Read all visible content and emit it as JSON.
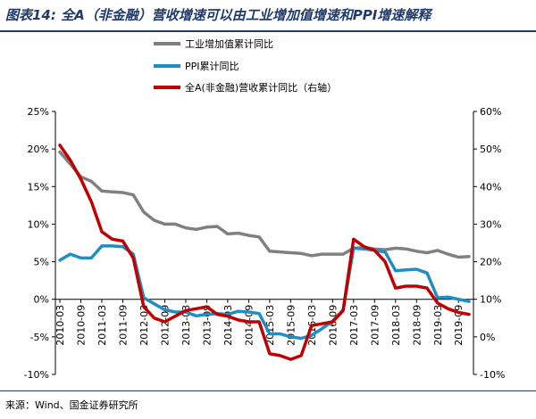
{
  "header": {
    "title": "图表14:  全A（非金融）营收增速可以由工业增加值增速和PPI增速解释"
  },
  "footer": {
    "source": "来源：Wind、国金证券研究所"
  },
  "chart_data": {
    "type": "line",
    "categories": [
      "2010-03",
      "2010-06",
      "2010-09",
      "2010-12",
      "2011-03",
      "2011-06",
      "2011-09",
      "2011-12",
      "2012-03",
      "2012-06",
      "2012-09",
      "2012-12",
      "2013-03",
      "2013-06",
      "2013-09",
      "2013-12",
      "2014-03",
      "2014-06",
      "2014-09",
      "2014-12",
      "2015-03",
      "2015-06",
      "2015-09",
      "2015-12",
      "2016-03",
      "2016-06",
      "2016-09",
      "2016-12",
      "2017-03",
      "2017-06",
      "2017-09",
      "2017-12",
      "2018-03",
      "2018-06",
      "2018-09",
      "2018-12",
      "2019-03",
      "2019-06",
      "2019-09",
      "2019-12"
    ],
    "x_tick_labels": [
      "2010-03",
      "2010-09",
      "2011-03",
      "2011-09",
      "2012-03",
      "2012-09",
      "2013-03",
      "2013-09",
      "2014-03",
      "2014-09",
      "2015-03",
      "2015-09",
      "2016-03",
      "2016-09",
      "2017-03",
      "2017-09",
      "2018-03",
      "2018-09",
      "2019-03",
      "2019-09"
    ],
    "left_axis": {
      "ylim": [
        -10,
        25
      ],
      "ticks": [
        "25%",
        "20%",
        "15%",
        "10%",
        "5%",
        "0%",
        "-5%",
        "-10%"
      ]
    },
    "right_axis": {
      "ylim": [
        -10,
        60
      ],
      "ticks": [
        "60%",
        "50%",
        "40%",
        "30%",
        "20%",
        "10%",
        "0%",
        "-10%"
      ]
    },
    "grid": false,
    "legend_position": "top-center",
    "series": [
      {
        "name": "工业增加值累计同比",
        "axis": "left",
        "color": "#808080",
        "values": [
          19.6,
          18.0,
          16.3,
          15.7,
          14.4,
          14.3,
          14.2,
          13.9,
          11.6,
          10.5,
          10.0,
          10.0,
          9.5,
          9.3,
          9.6,
          9.7,
          8.7,
          8.8,
          8.5,
          8.3,
          6.4,
          6.3,
          6.2,
          6.1,
          5.8,
          6.0,
          6.0,
          6.0,
          6.8,
          6.9,
          6.7,
          6.6,
          6.8,
          6.7,
          6.4,
          6.2,
          6.5,
          6.0,
          5.6,
          5.7
        ]
      },
      {
        "name": "PPI累计同比",
        "axis": "left",
        "color": "#1f8fc3",
        "values": [
          5.2,
          6.0,
          5.5,
          5.5,
          7.1,
          7.1,
          7.0,
          6.0,
          0.2,
          -0.6,
          -1.4,
          -1.7,
          -1.7,
          -2.2,
          -2.0,
          -1.9,
          -2.0,
          -1.6,
          -1.7,
          -1.9,
          -4.6,
          -4.6,
          -5.0,
          -5.2,
          -4.8,
          -3.9,
          -2.9,
          -1.4,
          6.8,
          6.7,
          6.5,
          6.3,
          3.8,
          3.9,
          4.0,
          3.5,
          0.2,
          0.3,
          0.0,
          -0.3
        ]
      },
      {
        "name": "全A(非金融)营收累计同比（右轴）",
        "axis": "right",
        "color": "#c00000",
        "values": [
          51,
          47,
          42,
          36,
          28,
          26,
          25.5,
          21,
          8,
          5,
          4,
          5.5,
          7,
          7.5,
          8,
          6,
          5.5,
          4.5,
          4,
          4,
          -4.5,
          -5,
          -6,
          -5,
          3,
          3.5,
          4,
          7,
          26,
          24,
          23,
          20,
          13,
          13.5,
          13.5,
          13,
          9,
          7.5,
          6.5,
          6
        ]
      }
    ]
  }
}
